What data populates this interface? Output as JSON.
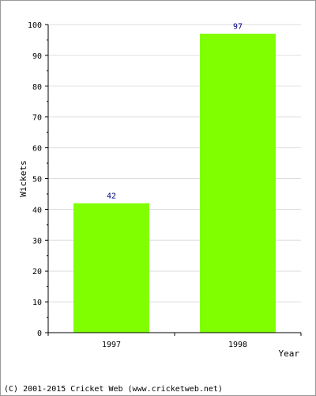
{
  "chart_data": {
    "type": "bar",
    "categories": [
      "1997",
      "1998"
    ],
    "values": [
      42,
      97
    ],
    "data_labels": [
      "42",
      "97"
    ],
    "title": "",
    "xlabel": "Year",
    "ylabel": "Wickets",
    "ylim": [
      0,
      100
    ],
    "yticks": [
      "0",
      "10",
      "20",
      "30",
      "40",
      "50",
      "60",
      "70",
      "80",
      "90",
      "100"
    ],
    "grid": true,
    "colors": {
      "bar": "#80ff00",
      "data_label": "#000080",
      "grid": "#dddddd",
      "axis": "#000000"
    }
  },
  "footer": {
    "copyright": "(C) 2001-2015 Cricket Web (www.cricketweb.net)"
  }
}
